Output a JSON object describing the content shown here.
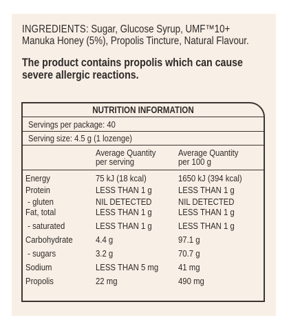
{
  "ingredients": {
    "heading": "INGREDIENTS",
    "text_line1": ": Sugar, Glucose Syrup, UMF™10+",
    "text_line2": "Manuka Honey (5%), Propolis Tincture, Natural Flavour."
  },
  "warning": {
    "line1": "The product contains propolis which can cause",
    "line2": "severe allergic reactions."
  },
  "nutrition": {
    "title": "NUTRITION INFORMATION",
    "servings_per_package": "Servings per package: 40",
    "serving_size": "Serving size: 4.5 g (1 lozenge)",
    "col_per_serving": [
      "Average Quantity",
      "per serving"
    ],
    "col_per_100g": [
      "Average Quantity",
      "per 100 g"
    ],
    "rows": [
      {
        "name": "Energy",
        "per_serving": "75 kJ (18 kcal)",
        "per_100g": "1650 kJ (394 kcal)"
      },
      {
        "name": "Protein",
        "per_serving": "LESS THAN 1 g",
        "per_100g": "LESS THAN 1 g"
      },
      {
        "name": " - gluten",
        "per_serving": "NIL DETECTED",
        "per_100g": "NIL DETECTED"
      },
      {
        "name": "Fat, total",
        "per_serving": "LESS THAN 1 g",
        "per_100g": "LESS THAN 1 g"
      },
      {
        "name": " - saturated",
        "per_serving": "LESS THAN 1 g",
        "per_100g": "LESS THAN 1 g"
      },
      {
        "name": "Carbohydrate",
        "per_serving": "4.4 g",
        "per_100g": "97.1 g"
      },
      {
        "name": " - sugars",
        "per_serving": "3.2 g",
        "per_100g": "70.7 g"
      },
      {
        "name": "Sodium",
        "per_serving": "LESS THAN 5 mg",
        "per_100g": "41 mg"
      },
      {
        "name": "Propolis",
        "per_serving": "22 mg",
        "per_100g": "490 mg"
      }
    ]
  }
}
